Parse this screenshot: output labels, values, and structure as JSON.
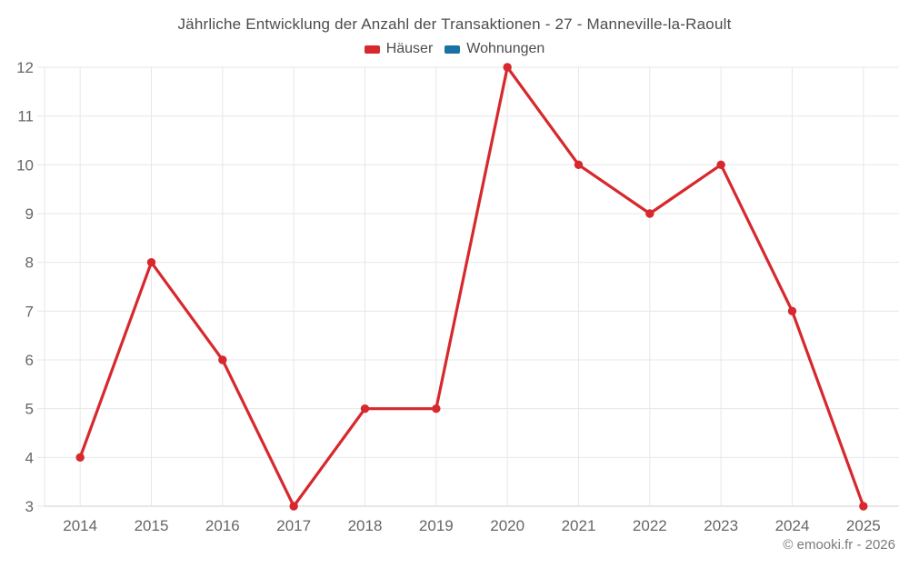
{
  "title": "Jährliche Entwicklung der Anzahl der Transaktionen - 27 - Manneville-la-Raoult",
  "legend": [
    {
      "label": "Häuser",
      "color": "#d7282e"
    },
    {
      "label": "Wohnungen",
      "color": "#1b70a4"
    }
  ],
  "footer": "© emooki.fr - 2026",
  "chart_data": {
    "type": "line",
    "title": "Jährliche Entwicklung der Anzahl der Transaktionen - 27 - Manneville-la-Raoult",
    "categories": [
      "2014",
      "2015",
      "2016",
      "2017",
      "2018",
      "2019",
      "2020",
      "2021",
      "2022",
      "2023",
      "2024",
      "2025"
    ],
    "series": [
      {
        "name": "Häuser",
        "color": "#d7282e",
        "values": [
          4,
          8,
          6,
          3,
          5,
          5,
          12,
          10,
          9,
          10,
          7,
          3
        ]
      },
      {
        "name": "Wohnungen",
        "color": "#1b70a4",
        "values": []
      }
    ],
    "xlabel": "",
    "ylabel": "",
    "ylim": [
      3,
      12
    ],
    "ytick_step": 1,
    "grid": true,
    "legend_position": "top",
    "marker": "circle"
  },
  "colors": {
    "grid": "#e7e7e7",
    "axis": "#cfcfcf",
    "tick_label": "#666666",
    "title_text": "#4c4c4c",
    "footer_text": "#7b7b7b",
    "background": "#ffffff"
  }
}
